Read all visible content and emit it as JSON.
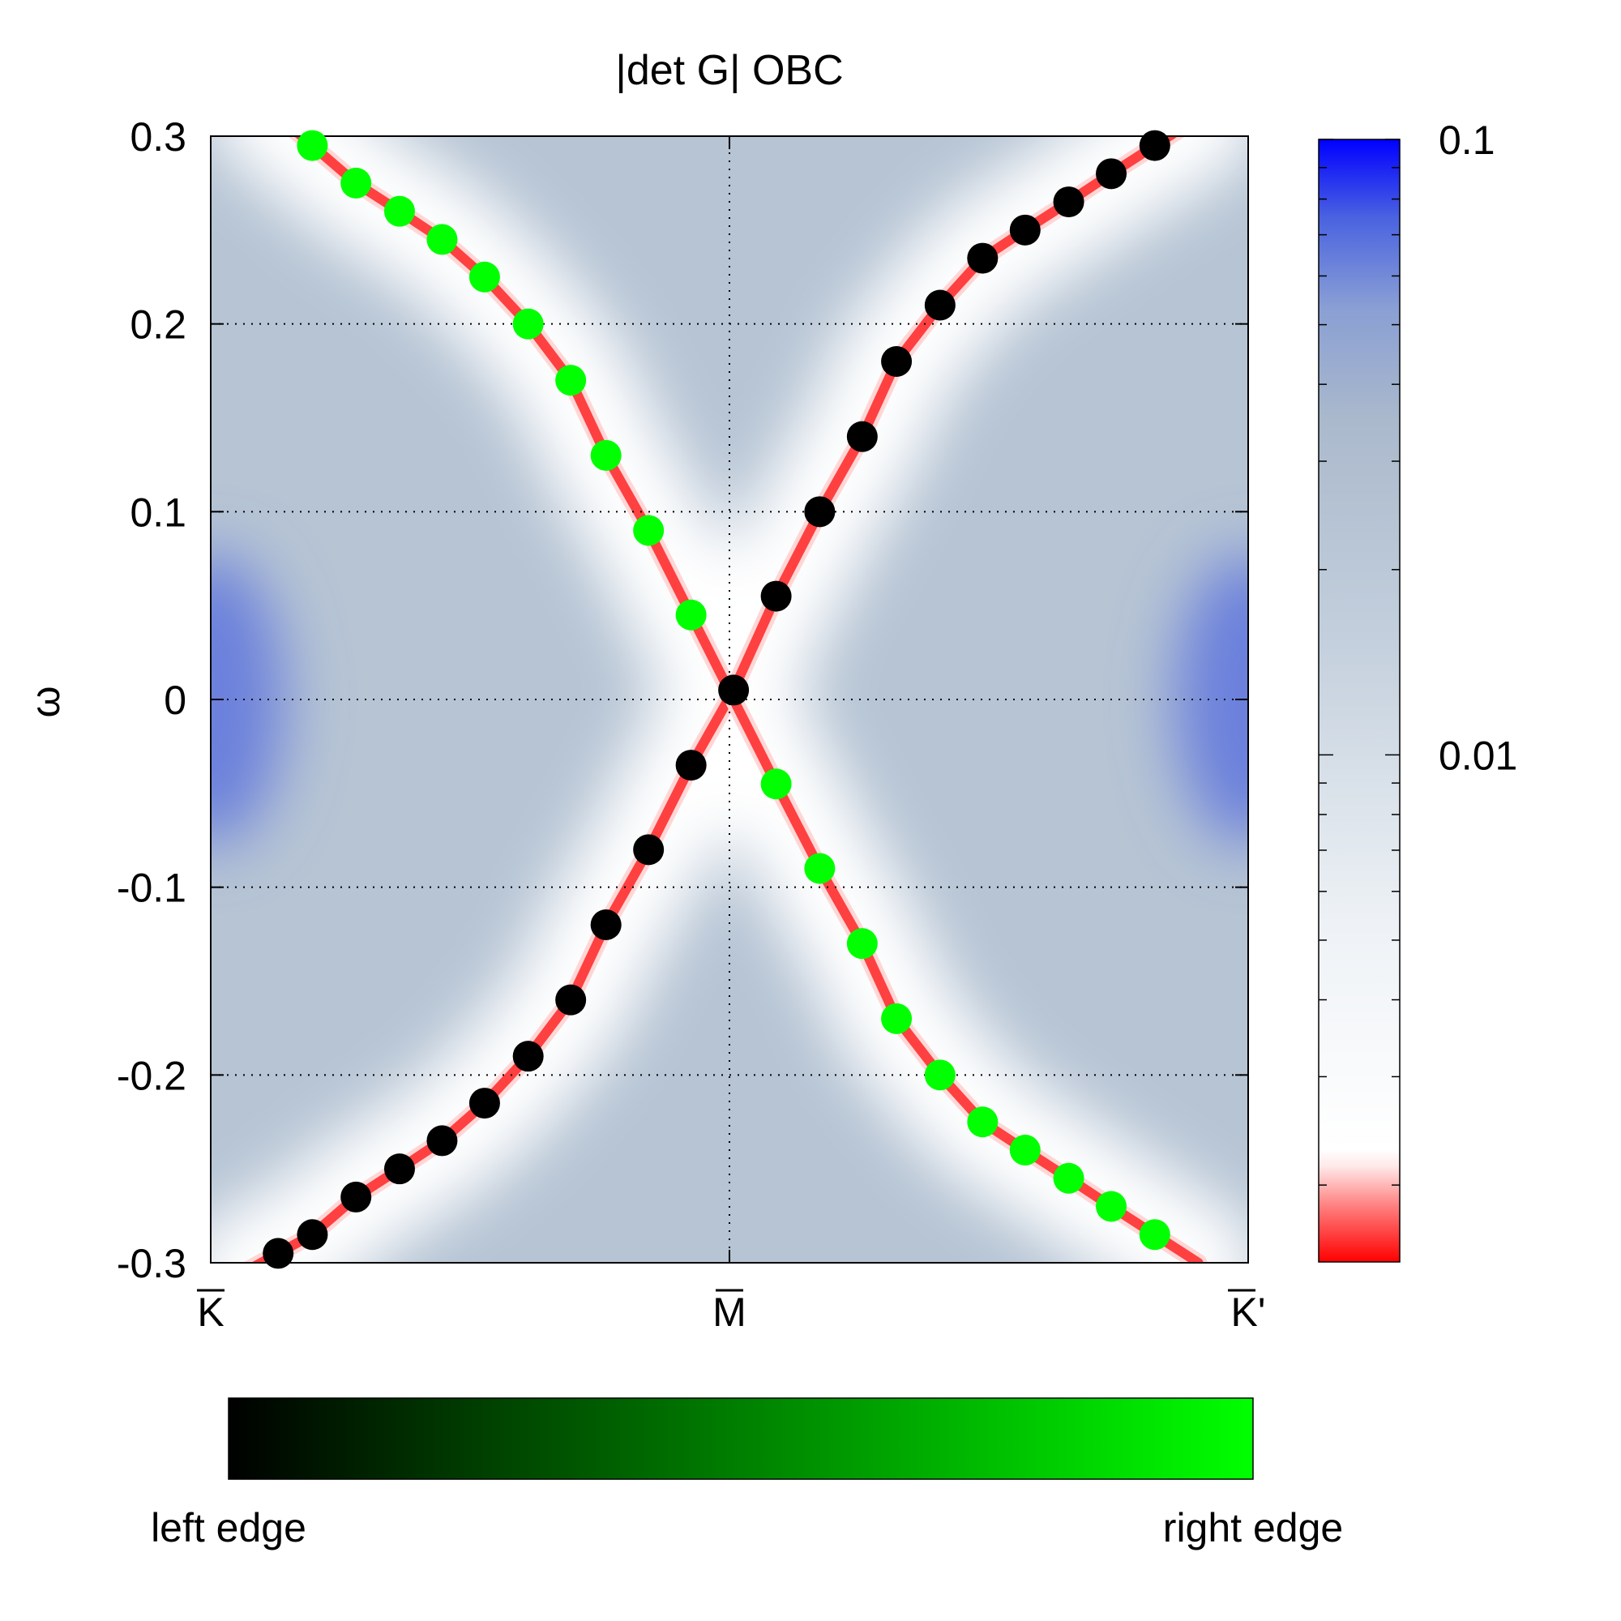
{
  "chart_data": {
    "type": "heatmap",
    "title": "|det G| OBC",
    "ylabel": "ω",
    "xlabel": "",
    "x_ticks": [
      {
        "label": "K",
        "overbar": true,
        "pos": 0
      },
      {
        "label": "M",
        "overbar": true,
        "pos": 0.5
      },
      {
        "label": "K'",
        "overbar": true,
        "pos": 1
      }
    ],
    "y_ticks": [
      "0.3",
      "0.2",
      "0.1",
      "0",
      "-0.1",
      "-0.2",
      "-0.3"
    ],
    "y_tick_values": [
      0.3,
      0.2,
      0.1,
      0,
      -0.1,
      -0.2,
      -0.3
    ],
    "ylim": [
      -0.3,
      0.3
    ],
    "xlim": [
      0,
      1
    ],
    "grid": true,
    "colorbar": {
      "scale": "log",
      "tick_labels": [
        "0.1",
        "0.01"
      ],
      "tick_values": [
        0.1,
        0.01
      ],
      "range": [
        0.0015,
        0.1
      ],
      "colors": {
        "low": "#ff0000",
        "mid": "#ffffff",
        "high_mid": "#a8b8cc",
        "high": "#0000ff"
      }
    },
    "edge_colorbar": {
      "left_label": "left edge",
      "right_label": "right edge",
      "colors": [
        "#000000",
        "#00ff00"
      ]
    },
    "series": [
      {
        "marker_color": "#000000",
        "points": [
          {
            "x": 0.065,
            "y": -0.295
          },
          {
            "x": 0.098,
            "y": -0.285
          },
          {
            "x": 0.14,
            "y": -0.265
          },
          {
            "x": 0.182,
            "y": -0.25
          },
          {
            "x": 0.223,
            "y": -0.235
          },
          {
            "x": 0.264,
            "y": -0.215
          },
          {
            "x": 0.306,
            "y": -0.19
          },
          {
            "x": 0.347,
            "y": -0.16
          },
          {
            "x": 0.381,
            "y": -0.12
          },
          {
            "x": 0.422,
            "y": -0.08
          },
          {
            "x": 0.463,
            "y": -0.035
          },
          {
            "x": 0.504,
            "y": 0.005
          },
          {
            "x": 0.545,
            "y": 0.055
          },
          {
            "x": 0.587,
            "y": 0.1
          },
          {
            "x": 0.628,
            "y": 0.14
          },
          {
            "x": 0.661,
            "y": 0.18
          },
          {
            "x": 0.703,
            "y": 0.21
          },
          {
            "x": 0.744,
            "y": 0.235
          },
          {
            "x": 0.785,
            "y": 0.25
          },
          {
            "x": 0.827,
            "y": 0.265
          },
          {
            "x": 0.868,
            "y": 0.28
          },
          {
            "x": 0.91,
            "y": 0.295
          }
        ]
      },
      {
        "marker_color": "#00ff00",
        "points": [
          {
            "x": 0.098,
            "y": 0.295
          },
          {
            "x": 0.14,
            "y": 0.275
          },
          {
            "x": 0.182,
            "y": 0.26
          },
          {
            "x": 0.223,
            "y": 0.245
          },
          {
            "x": 0.264,
            "y": 0.225
          },
          {
            "x": 0.306,
            "y": 0.2
          },
          {
            "x": 0.347,
            "y": 0.17
          },
          {
            "x": 0.381,
            "y": 0.13
          },
          {
            "x": 0.422,
            "y": 0.09
          },
          {
            "x": 0.463,
            "y": 0.045
          },
          {
            "x": 0.545,
            "y": -0.045
          },
          {
            "x": 0.587,
            "y": -0.09
          },
          {
            "x": 0.628,
            "y": -0.13
          },
          {
            "x": 0.661,
            "y": -0.17
          },
          {
            "x": 0.703,
            "y": -0.2
          },
          {
            "x": 0.744,
            "y": -0.225
          },
          {
            "x": 0.785,
            "y": -0.24
          },
          {
            "x": 0.827,
            "y": -0.255
          },
          {
            "x": 0.868,
            "y": -0.27
          },
          {
            "x": 0.91,
            "y": -0.285
          }
        ]
      }
    ]
  }
}
